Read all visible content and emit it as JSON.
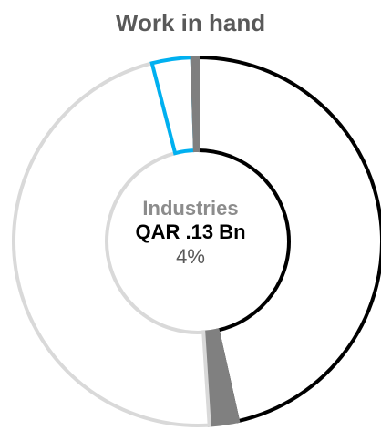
{
  "chart_data": {
    "type": "pie",
    "title": "Work in hand",
    "donut": true,
    "slices": [
      {
        "value": 46.5,
        "fill": "#ffffff",
        "stroke": "#000000"
      },
      {
        "value": 2.5,
        "fill": "#808080",
        "stroke": "#808080"
      },
      {
        "value": 47.0,
        "fill": "#ffffff",
        "stroke": "#d9d9d9"
      },
      {
        "value": 3.5,
        "fill": "#ffffff",
        "stroke": "#00b0f0"
      },
      {
        "value": 0.5,
        "fill": "#7f7f7f",
        "stroke": "#7f7f7f"
      }
    ],
    "highlight": {
      "category": "Industries",
      "value": "QAR .13 Bn",
      "percent": "4%"
    }
  }
}
